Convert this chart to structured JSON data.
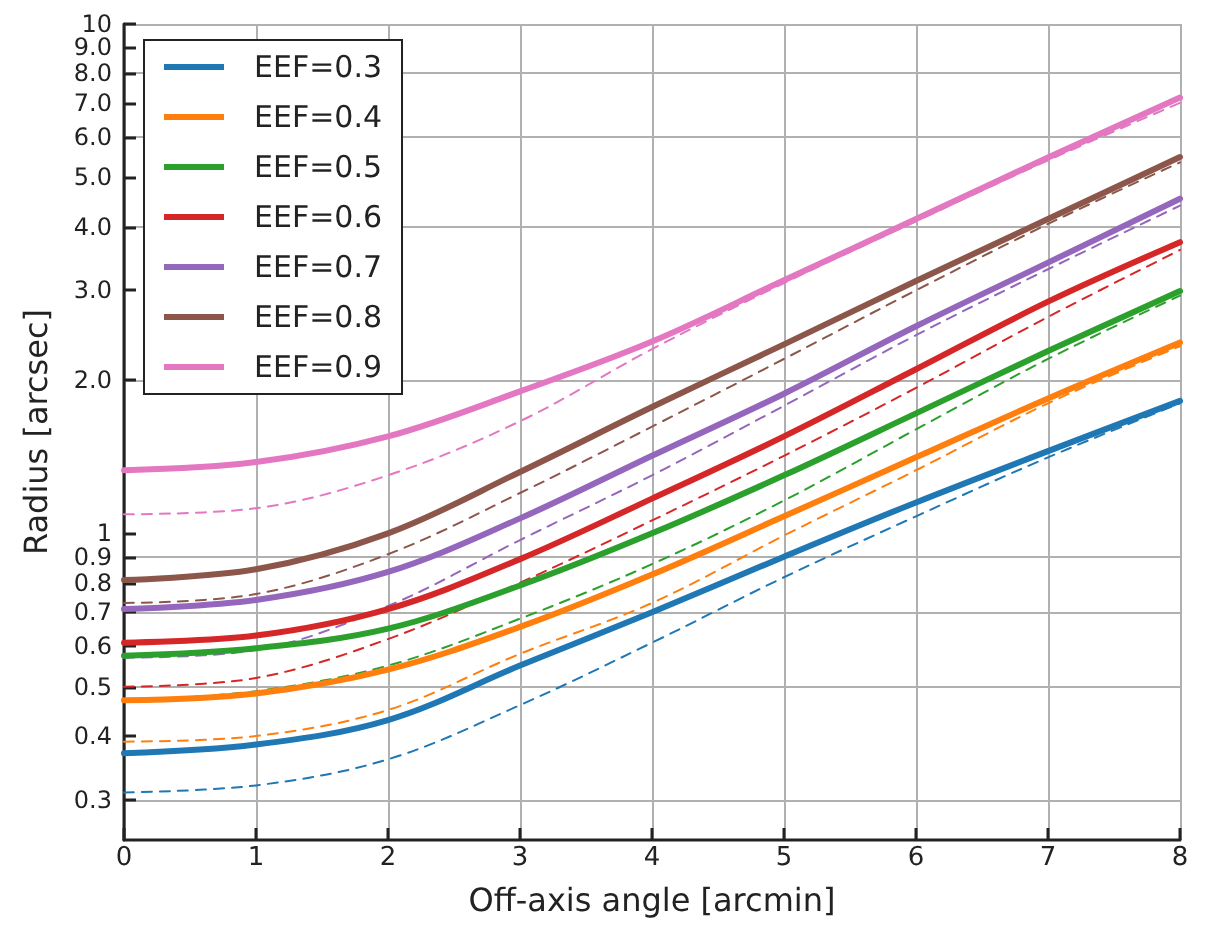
{
  "chart_data": {
    "type": "line",
    "xlabel": "Off-axis angle [arcmin]",
    "ylabel": "Radius [arcsec]",
    "x": [
      0,
      1,
      2,
      3,
      4,
      5,
      6,
      7,
      8
    ],
    "series": [
      {
        "name": "EEF=0.3",
        "color": "#1f77b4",
        "line_style": "solid",
        "values": [
          0.37,
          0.385,
          0.43,
          0.55,
          0.7,
          0.9,
          1.15,
          1.45,
          1.82
        ]
      },
      {
        "name": "EEF=0.4",
        "color": "#ff7f0e",
        "line_style": "solid",
        "values": [
          0.47,
          0.485,
          0.54,
          0.655,
          0.83,
          1.08,
          1.41,
          1.84,
          2.37
        ]
      },
      {
        "name": "EEF=0.5",
        "color": "#2ca02c",
        "line_style": "solid",
        "values": [
          0.575,
          0.595,
          0.65,
          0.79,
          1.0,
          1.3,
          1.72,
          2.28,
          2.99
        ]
      },
      {
        "name": "EEF=0.6",
        "color": "#d62728",
        "line_style": "solid",
        "values": [
          0.61,
          0.63,
          0.71,
          0.89,
          1.17,
          1.55,
          2.1,
          2.85,
          3.73
        ]
      },
      {
        "name": "EEF=0.7",
        "color": "#9467bd",
        "line_style": "solid",
        "values": [
          0.71,
          0.74,
          0.84,
          1.07,
          1.42,
          1.88,
          2.55,
          3.4,
          4.54
        ]
      },
      {
        "name": "EEF=0.8",
        "color": "#8c564b",
        "line_style": "solid",
        "values": [
          0.81,
          0.85,
          1.0,
          1.32,
          1.77,
          2.35,
          3.13,
          4.14,
          5.48
        ]
      },
      {
        "name": "EEF=0.9",
        "color": "#e377c2",
        "line_style": "solid",
        "values": [
          1.33,
          1.38,
          1.55,
          1.9,
          2.38,
          3.14,
          4.14,
          5.47,
          7.17
        ]
      },
      {
        "color": "#1f77b4",
        "line_style": "dashed",
        "values": [
          0.31,
          0.32,
          0.36,
          0.46,
          0.61,
          0.82,
          1.08,
          1.41,
          1.8
        ]
      },
      {
        "color": "#ff7f0e",
        "line_style": "dashed",
        "values": [
          0.39,
          0.4,
          0.45,
          0.58,
          0.73,
          0.99,
          1.33,
          1.8,
          2.33
        ]
      },
      {
        "color": "#2ca02c",
        "line_style": "dashed",
        "values": [
          0.47,
          0.49,
          0.55,
          0.68,
          0.87,
          1.16,
          1.6,
          2.2,
          2.93
        ]
      },
      {
        "color": "#d62728",
        "line_style": "dashed",
        "values": [
          0.5,
          0.52,
          0.62,
          0.8,
          1.06,
          1.42,
          1.93,
          2.66,
          3.6
        ]
      },
      {
        "color": "#9467bd",
        "line_style": "dashed",
        "values": [
          0.57,
          0.59,
          0.72,
          0.97,
          1.3,
          1.78,
          2.45,
          3.3,
          4.4
        ]
      },
      {
        "color": "#8c564b",
        "line_style": "dashed",
        "values": [
          0.73,
          0.76,
          0.91,
          1.2,
          1.62,
          2.2,
          3.0,
          4.05,
          5.35
        ]
      },
      {
        "color": "#e377c2",
        "line_style": "dashed",
        "values": [
          1.09,
          1.12,
          1.3,
          1.66,
          2.3,
          3.1,
          4.1,
          5.4,
          7.0
        ]
      }
    ],
    "xlim": [
      0,
      8
    ],
    "xticks": [
      0,
      1,
      2,
      3,
      4,
      5,
      6,
      7,
      8
    ],
    "ylim": [
      0.25,
      10
    ],
    "log": "y",
    "yticks": [
      0.3,
      0.4,
      0.5,
      0.6,
      0.7,
      0.8,
      0.9,
      1,
      {
        "value": 2,
        "label": "2.0"
      },
      {
        "value": 3,
        "label": "3.0"
      },
      {
        "value": 4,
        "label": "4.0"
      },
      {
        "value": 5,
        "label": "5.0"
      },
      {
        "value": 6,
        "label": "6.0"
      },
      {
        "value": 7,
        "label": "7.0"
      },
      {
        "value": 8,
        "label": "8.0"
      },
      {
        "value": 9,
        "label": "9.0"
      },
      10
    ],
    "grid": true,
    "legend": "top left",
    "marker": "none"
  }
}
